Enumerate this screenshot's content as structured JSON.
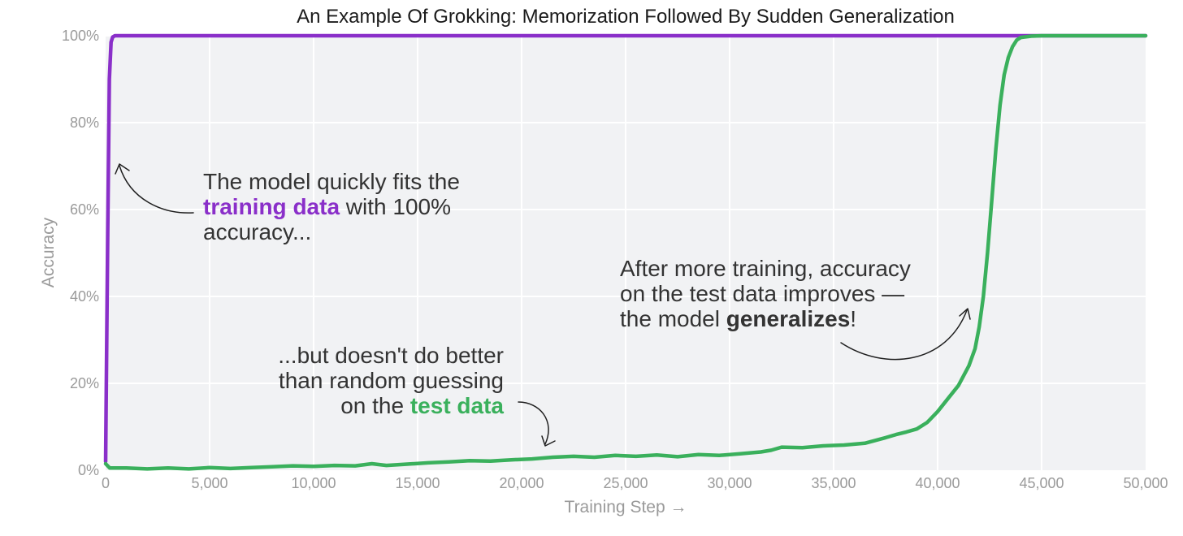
{
  "chart_data": {
    "type": "line",
    "title": "An Example Of Grokking: Memorization Followed By Sudden Generalization",
    "xlabel": "Training Step →",
    "ylabel": "Accuracy",
    "xlim": [
      0,
      50000
    ],
    "ylim": [
      0,
      100
    ],
    "grid": true,
    "x_ticks": [
      0,
      5000,
      10000,
      15000,
      20000,
      25000,
      30000,
      35000,
      40000,
      45000,
      50000
    ],
    "x_tick_labels": [
      "0",
      "5,000",
      "10,000",
      "15,000",
      "20,000",
      "25,000",
      "30,000",
      "35,000",
      "40,000",
      "45,000",
      "50,000"
    ],
    "y_ticks": [
      0,
      20,
      40,
      60,
      80,
      100
    ],
    "y_tick_labels": [
      "0%",
      "20%",
      "40%",
      "60%",
      "80%",
      "100%"
    ],
    "colors": {
      "training": "#8a2fc9",
      "test": "#3ab05c",
      "plot_background": "#f1f2f4",
      "grid": "#ffffff"
    },
    "series": [
      {
        "key": "training",
        "color": "#8a2fc9",
        "x": [
          0,
          100,
          180,
          260,
          340,
          450,
          600,
          1000,
          2000,
          5000,
          10000,
          20000,
          30000,
          40000,
          50000
        ],
        "y": [
          2,
          55,
          90,
          98.5,
          99.7,
          100,
          100,
          100,
          100,
          100,
          100,
          100,
          100,
          100,
          100
        ]
      },
      {
        "key": "test",
        "color": "#3ab05c",
        "x": [
          0,
          200,
          1000,
          2000,
          3000,
          4000,
          5000,
          6000,
          7000,
          8000,
          9000,
          10000,
          11000,
          12000,
          12800,
          13500,
          14500,
          15500,
          16500,
          17500,
          18500,
          19500,
          20500,
          21500,
          22500,
          23500,
          24500,
          25500,
          26500,
          27500,
          28500,
          29500,
          30500,
          31500,
          32000,
          32500,
          33500,
          34500,
          35500,
          36500,
          37500,
          38000,
          38500,
          39000,
          39500,
          40000,
          40500,
          41000,
          41500,
          41800,
          42000,
          42200,
          42400,
          42600,
          42800,
          43000,
          43200,
          43400,
          43600,
          43800,
          44000,
          44500,
          45000,
          46000,
          48000,
          50000
        ],
        "y": [
          1.5,
          0.5,
          0.5,
          0.3,
          0.5,
          0.3,
          0.6,
          0.4,
          0.6,
          0.8,
          1.0,
          0.9,
          1.1,
          1.0,
          1.5,
          1.1,
          1.4,
          1.7,
          1.9,
          2.2,
          2.1,
          2.4,
          2.6,
          3.0,
          3.2,
          3.0,
          3.4,
          3.2,
          3.5,
          3.1,
          3.6,
          3.4,
          3.8,
          4.2,
          4.6,
          5.3,
          5.2,
          5.6,
          5.8,
          6.2,
          7.5,
          8.2,
          8.8,
          9.5,
          11,
          13.5,
          16.5,
          19.5,
          24,
          28,
          33,
          40,
          50,
          62,
          74,
          84,
          91,
          95,
          97.5,
          99,
          99.6,
          99.9,
          100,
          100,
          100,
          100
        ]
      }
    ],
    "annotations": [
      {
        "key": "train_note",
        "lines": [
          [
            {
              "text": "The model quickly fits the",
              "color": "#333333",
              "bold": false
            }
          ],
          [
            {
              "text": "training data",
              "color": "#8a2fc9",
              "bold": true
            },
            {
              "text": " with 100%",
              "color": "#333333",
              "bold": false
            }
          ],
          [
            {
              "text": "accuracy...",
              "color": "#333333",
              "bold": false
            }
          ]
        ]
      },
      {
        "key": "test_note",
        "lines": [
          [
            {
              "text": "...but doesn't do better",
              "color": "#333333",
              "bold": false
            }
          ],
          [
            {
              "text": "than random guessing",
              "color": "#333333",
              "bold": false
            }
          ],
          [
            {
              "text": "on the ",
              "color": "#333333",
              "bold": false
            },
            {
              "text": "test data",
              "color": "#3ab05c",
              "bold": true
            }
          ]
        ]
      },
      {
        "key": "generalize_note",
        "lines": [
          [
            {
              "text": "After more training, accuracy",
              "color": "#333333",
              "bold": false
            }
          ],
          [
            {
              "text": "on the test data improves —",
              "color": "#333333",
              "bold": false
            }
          ],
          [
            {
              "text": "the model ",
              "color": "#333333",
              "bold": false
            },
            {
              "text": "generalizes",
              "color": "#333333",
              "bold": true
            },
            {
              "text": "!",
              "color": "#333333",
              "bold": false
            }
          ]
        ]
      }
    ]
  }
}
